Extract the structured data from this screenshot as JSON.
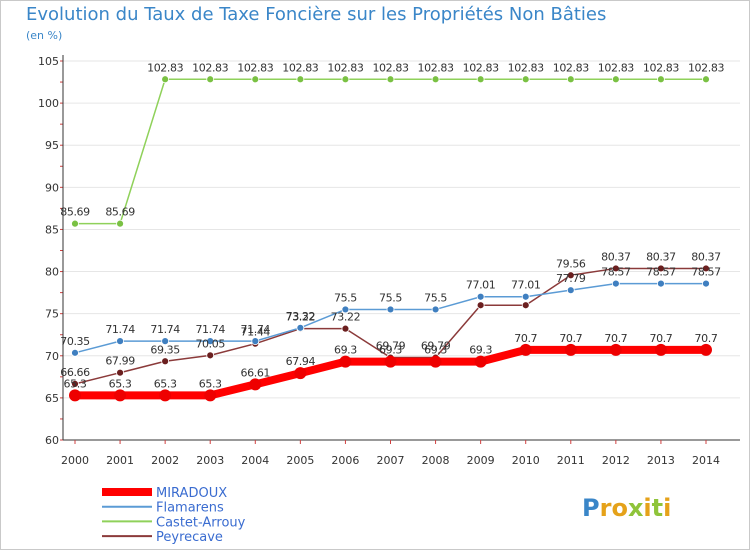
{
  "chart_data": {
    "type": "line",
    "title": "Evolution du Taux de Taxe Foncière sur les Propriétés Non Bâties",
    "ylabel": "(en %)",
    "xlabel": "",
    "ylim": [
      60,
      105
    ],
    "yticks": [
      60,
      65,
      70,
      75,
      80,
      85,
      90,
      95,
      100,
      105
    ],
    "grid": true,
    "legend_position": "bottom-left",
    "categories": [
      "2000",
      "2001",
      "2002",
      "2003",
      "2004",
      "2005",
      "2006",
      "2007",
      "2008",
      "2009",
      "2010",
      "2011",
      "2012",
      "2013",
      "2014"
    ],
    "series": [
      {
        "name": "Castet-Arrouy",
        "color": "#8fd15a",
        "marker": "#7ac143",
        "values": [
          85.69,
          85.69,
          102.83,
          102.83,
          102.83,
          102.83,
          102.83,
          102.83,
          102.83,
          102.83,
          102.83,
          102.83,
          102.83,
          102.83,
          102.83
        ],
        "labels": [
          "85.69",
          "85.69",
          "102.83",
          "102.83",
          "102.83",
          "102.83",
          "102.83",
          "102.83",
          "102.83",
          "102.83",
          "102.83",
          "102.83",
          "102.83",
          "102.83",
          "102.83"
        ]
      },
      {
        "name": "Peyrecave",
        "color": "#8b3a3a",
        "marker": "#6b1f1f",
        "values": [
          66.66,
          67.99,
          69.35,
          70.05,
          71.44,
          73.22,
          73.22,
          69.79,
          69.79,
          76.0,
          76.0,
          79.56,
          80.37,
          80.37,
          80.37
        ],
        "labels": [
          "66.66",
          "67.99",
          "69.35",
          "70.05",
          "71.44",
          "73.22",
          "73.22",
          "69.79",
          "69.79",
          "",
          "",
          "79.56",
          "80.37",
          "80.37",
          "80.37"
        ]
      },
      {
        "name": "Flamarens",
        "color": "#5b9bd5",
        "marker": "#3f7fc0",
        "values": [
          70.35,
          71.74,
          71.74,
          71.74,
          71.74,
          73.32,
          75.5,
          75.5,
          75.5,
          77.01,
          77.01,
          77.79,
          78.57,
          78.57,
          78.57
        ],
        "labels": [
          "70.35",
          "71.74",
          "71.74",
          "71.74",
          "71.74",
          "73.32",
          "75.5",
          "75.5",
          "75.5",
          "77.01",
          "77.01",
          "77.79",
          "78.57",
          "78.57",
          "78.57"
        ]
      },
      {
        "name": "MIRADOUX",
        "color": "#ff0000",
        "marker": "#ee0000",
        "values": [
          65.3,
          65.3,
          65.3,
          65.3,
          66.61,
          67.94,
          69.3,
          69.3,
          69.3,
          69.3,
          70.7,
          70.7,
          70.7,
          70.7,
          70.7
        ],
        "labels": [
          "65.3",
          "65.3",
          "65.3",
          "65.3",
          "66.61",
          "67.94",
          "69.3",
          "69.3",
          "69.3",
          "69.3",
          "70.7",
          "70.7",
          "70.7",
          "70.7",
          "70.7"
        ]
      }
    ],
    "legend": [
      "MIRADOUX",
      "Flamarens",
      "Castet-Arrouy",
      "Peyrecave"
    ]
  },
  "brand": {
    "name": "Proxiti",
    "letters": [
      "P",
      "r",
      "o",
      "x",
      "i",
      "t",
      "i"
    ],
    "colors": [
      "#3a86c8",
      "#e5a21a",
      "#e5a21a",
      "#8fc43a",
      "#e5a21a",
      "#8fc43a",
      "#e5a21a"
    ]
  }
}
